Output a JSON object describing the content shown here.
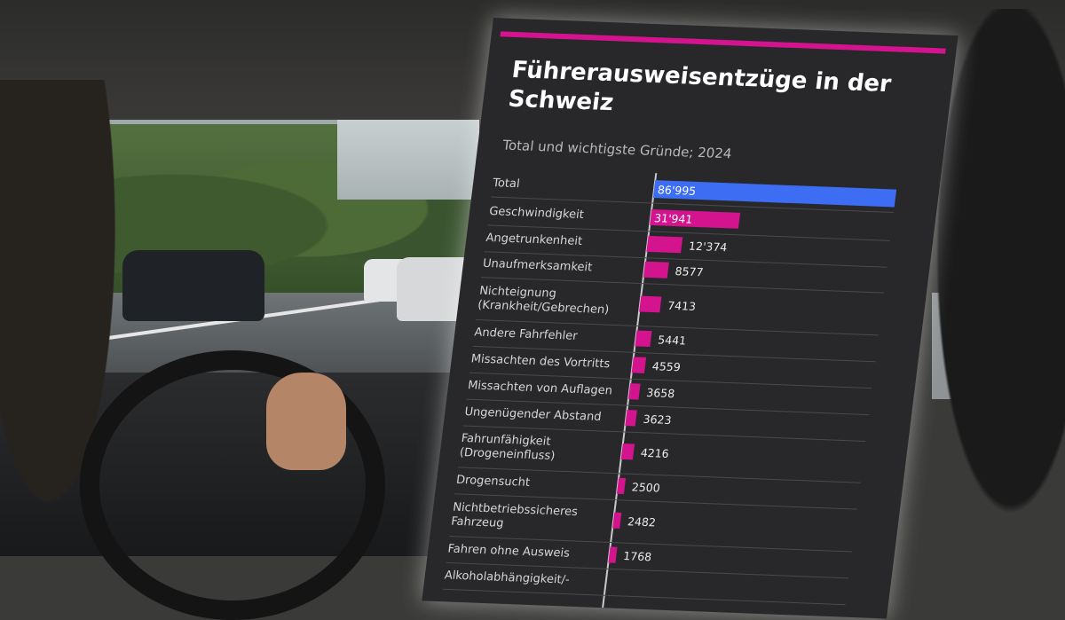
{
  "card": {
    "title": "Führerausweisentzüge in der Schweiz",
    "subtitle": "Total und wichtigste Gründe; 2024"
  },
  "colors": {
    "total_bar": "#3d6df2",
    "reason_bar": "#d4148f",
    "card_bg": "#28282b",
    "accent_stripe": "#d4148f"
  },
  "chart_data": {
    "type": "bar",
    "orientation": "horizontal",
    "title": "Führerausweisentzüge in der Schweiz",
    "subtitle": "Total und wichtigste Gründe; 2024",
    "categories": [
      [
        "Total"
      ],
      [
        "Geschwindigkeit"
      ],
      [
        "Angetrunkenheit"
      ],
      [
        "Unaufmerksamkeit"
      ],
      [
        "Nichteignung",
        "(Krankheit/Gebrechen)"
      ],
      [
        "Andere Fahrfehler"
      ],
      [
        "Missachten des Vortritts"
      ],
      [
        "Missachten von Auflagen"
      ],
      [
        "Ungenügender Abstand"
      ],
      [
        "Fahrunfähigkeit",
        "(Drogeneinfluss)"
      ],
      [
        "Drogensucht"
      ],
      [
        "Nichtbetriebssicheres",
        "Fahrzeug"
      ],
      [
        "Fahren ohne Ausweis"
      ],
      [
        "Alkoholabhängigkeit/-"
      ]
    ],
    "values": [
      86995,
      31941,
      12374,
      8577,
      7413,
      5441,
      4559,
      3658,
      3623,
      4216,
      2500,
      2482,
      1768,
      null
    ],
    "value_labels": [
      "86'995",
      "31'941",
      "12'374",
      "8577",
      "7413",
      "5441",
      "4559",
      "3658",
      "3623",
      "4216",
      "2500",
      "2482",
      "1768",
      ""
    ],
    "highlight_index": 0,
    "xlim": [
      0,
      86995
    ],
    "gridlines": false
  }
}
